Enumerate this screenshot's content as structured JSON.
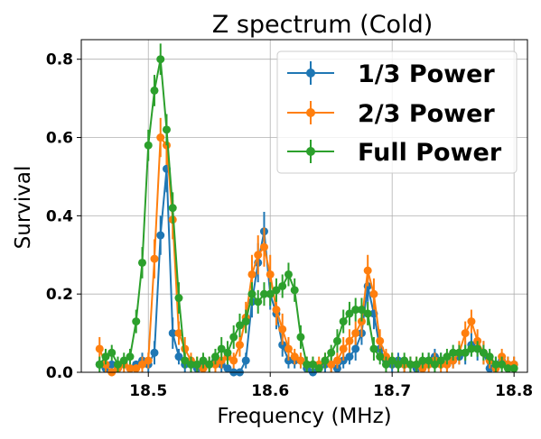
{
  "chart_data": {
    "type": "line",
    "title": "Z spectrum (Cold)",
    "xlabel": "Frequency (MHz)",
    "ylabel": "Survival",
    "xlim": [
      18.445,
      18.811
    ],
    "ylim": [
      0.0,
      0.85
    ],
    "xticks": [
      18.5,
      18.6,
      18.7,
      18.8
    ],
    "xtick_labels": [
      "18.5",
      "18.6",
      "18.7",
      "18.8"
    ],
    "yticks": [
      0.0,
      0.2,
      0.4,
      0.6,
      0.8
    ],
    "ytick_labels": [
      "0.0",
      "0.2",
      "0.4",
      "0.6",
      "0.8"
    ],
    "grid": true,
    "legend_position": "upper right",
    "error_bars": true,
    "series": [
      {
        "name": "1/3 Power",
        "color": "#1f77b4",
        "x": [
          18.46,
          18.465,
          18.47,
          18.475,
          18.48,
          18.485,
          18.49,
          18.495,
          18.5,
          18.505,
          18.51,
          18.515,
          18.52,
          18.525,
          18.53,
          18.535,
          18.54,
          18.545,
          18.55,
          18.555,
          18.56,
          18.565,
          18.57,
          18.575,
          18.58,
          18.585,
          18.59,
          18.595,
          18.6,
          18.605,
          18.61,
          18.615,
          18.62,
          18.625,
          18.63,
          18.635,
          18.64,
          18.645,
          18.65,
          18.655,
          18.66,
          18.665,
          18.67,
          18.675,
          18.68,
          18.685,
          18.69,
          18.695,
          18.7,
          18.705,
          18.71,
          18.715,
          18.72,
          18.725,
          18.73,
          18.735,
          18.74,
          18.745,
          18.75,
          18.755,
          18.76,
          18.765,
          18.77,
          18.775,
          18.78,
          18.785,
          18.79,
          18.795,
          18.8
        ],
        "y": [
          0.02,
          0.01,
          0.02,
          0.01,
          0.02,
          0.01,
          0.02,
          0.03,
          0.02,
          0.05,
          0.35,
          0.52,
          0.1,
          0.04,
          0.02,
          0.02,
          0.01,
          0.02,
          0.02,
          0.03,
          0.02,
          0.01,
          0.0,
          0.0,
          0.03,
          0.18,
          0.28,
          0.36,
          0.2,
          0.15,
          0.07,
          0.03,
          0.03,
          0.03,
          0.01,
          0.0,
          0.01,
          0.02,
          0.02,
          0.01,
          0.03,
          0.04,
          0.06,
          0.1,
          0.22,
          0.15,
          0.06,
          0.03,
          0.02,
          0.03,
          0.02,
          0.02,
          0.01,
          0.02,
          0.03,
          0.04,
          0.03,
          0.02,
          0.03,
          0.04,
          0.05,
          0.07,
          0.06,
          0.05,
          0.01,
          0.02,
          0.03,
          0.02,
          0.02
        ],
        "err": [
          0.01,
          0.01,
          0.01,
          0.01,
          0.01,
          0.01,
          0.01,
          0.02,
          0.02,
          0.03,
          0.05,
          0.06,
          0.04,
          0.02,
          0.02,
          0.02,
          0.01,
          0.02,
          0.02,
          0.02,
          0.02,
          0.01,
          0.01,
          0.01,
          0.02,
          0.04,
          0.05,
          0.05,
          0.04,
          0.04,
          0.03,
          0.02,
          0.02,
          0.02,
          0.01,
          0.01,
          0.01,
          0.02,
          0.02,
          0.01,
          0.02,
          0.02,
          0.03,
          0.03,
          0.04,
          0.04,
          0.03,
          0.02,
          0.02,
          0.02,
          0.02,
          0.02,
          0.01,
          0.02,
          0.02,
          0.02,
          0.02,
          0.02,
          0.02,
          0.02,
          0.03,
          0.03,
          0.03,
          0.03,
          0.01,
          0.02,
          0.02,
          0.02,
          0.02
        ]
      },
      {
        "name": "2/3 Power",
        "color": "#ff7f0e",
        "x": [
          18.46,
          18.465,
          18.47,
          18.475,
          18.48,
          18.485,
          18.49,
          18.495,
          18.5,
          18.505,
          18.51,
          18.515,
          18.52,
          18.525,
          18.53,
          18.535,
          18.54,
          18.545,
          18.55,
          18.555,
          18.56,
          18.565,
          18.57,
          18.575,
          18.58,
          18.585,
          18.59,
          18.595,
          18.6,
          18.605,
          18.61,
          18.615,
          18.62,
          18.625,
          18.63,
          18.635,
          18.64,
          18.645,
          18.65,
          18.655,
          18.66,
          18.665,
          18.67,
          18.675,
          18.68,
          18.685,
          18.69,
          18.695,
          18.7,
          18.705,
          18.71,
          18.715,
          18.72,
          18.725,
          18.73,
          18.735,
          18.74,
          18.745,
          18.75,
          18.755,
          18.76,
          18.765,
          18.77,
          18.775,
          18.78,
          18.785,
          18.79,
          18.795,
          18.8
        ],
        "y": [
          0.06,
          0.02,
          0.0,
          0.01,
          0.02,
          0.01,
          0.01,
          0.02,
          0.03,
          0.29,
          0.6,
          0.58,
          0.39,
          0.1,
          0.06,
          0.03,
          0.02,
          0.01,
          0.02,
          0.02,
          0.03,
          0.04,
          0.03,
          0.07,
          0.14,
          0.25,
          0.3,
          0.32,
          0.25,
          0.16,
          0.11,
          0.06,
          0.04,
          0.03,
          0.02,
          0.02,
          0.02,
          0.03,
          0.02,
          0.03,
          0.06,
          0.08,
          0.1,
          0.13,
          0.26,
          0.2,
          0.08,
          0.04,
          0.03,
          0.02,
          0.02,
          0.02,
          0.02,
          0.01,
          0.02,
          0.03,
          0.02,
          0.02,
          0.03,
          0.05,
          0.1,
          0.13,
          0.08,
          0.05,
          0.03,
          0.01,
          0.04,
          0.02,
          0.02
        ],
        "err": [
          0.03,
          0.02,
          0.01,
          0.01,
          0.02,
          0.01,
          0.01,
          0.02,
          0.02,
          0.05,
          0.05,
          0.05,
          0.05,
          0.03,
          0.03,
          0.02,
          0.02,
          0.01,
          0.02,
          0.02,
          0.02,
          0.02,
          0.02,
          0.03,
          0.04,
          0.05,
          0.05,
          0.05,
          0.05,
          0.04,
          0.04,
          0.03,
          0.02,
          0.02,
          0.02,
          0.02,
          0.02,
          0.02,
          0.02,
          0.02,
          0.03,
          0.03,
          0.03,
          0.04,
          0.04,
          0.04,
          0.03,
          0.02,
          0.02,
          0.02,
          0.02,
          0.02,
          0.02,
          0.01,
          0.02,
          0.02,
          0.02,
          0.02,
          0.02,
          0.03,
          0.03,
          0.03,
          0.03,
          0.03,
          0.02,
          0.01,
          0.02,
          0.02,
          0.02
        ]
      },
      {
        "name": "Full Power",
        "color": "#2ca02c",
        "x": [
          18.46,
          18.465,
          18.47,
          18.475,
          18.48,
          18.485,
          18.49,
          18.495,
          18.5,
          18.505,
          18.51,
          18.515,
          18.52,
          18.525,
          18.53,
          18.535,
          18.54,
          18.545,
          18.55,
          18.555,
          18.56,
          18.565,
          18.57,
          18.575,
          18.58,
          18.585,
          18.59,
          18.595,
          18.6,
          18.605,
          18.61,
          18.615,
          18.62,
          18.625,
          18.63,
          18.635,
          18.64,
          18.645,
          18.65,
          18.655,
          18.66,
          18.665,
          18.67,
          18.675,
          18.68,
          18.685,
          18.69,
          18.695,
          18.7,
          18.705,
          18.71,
          18.715,
          18.72,
          18.725,
          18.73,
          18.735,
          18.74,
          18.745,
          18.75,
          18.755,
          18.76,
          18.765,
          18.77,
          18.775,
          18.78,
          18.785,
          18.79,
          18.795,
          18.8
        ],
        "y": [
          0.02,
          0.04,
          0.05,
          0.02,
          0.03,
          0.04,
          0.13,
          0.28,
          0.58,
          0.72,
          0.8,
          0.62,
          0.42,
          0.19,
          0.03,
          0.02,
          0.02,
          0.03,
          0.02,
          0.04,
          0.06,
          0.05,
          0.09,
          0.12,
          0.13,
          0.2,
          0.18,
          0.2,
          0.2,
          0.21,
          0.22,
          0.25,
          0.21,
          0.09,
          0.02,
          0.02,
          0.01,
          0.03,
          0.05,
          0.08,
          0.13,
          0.15,
          0.16,
          0.16,
          0.15,
          0.06,
          0.04,
          0.02,
          0.03,
          0.02,
          0.03,
          0.02,
          0.02,
          0.03,
          0.03,
          0.02,
          0.03,
          0.04,
          0.05,
          0.05,
          0.05,
          0.06,
          0.06,
          0.05,
          0.04,
          0.02,
          0.02,
          0.01,
          0.01
        ],
        "err": [
          0.02,
          0.02,
          0.02,
          0.02,
          0.02,
          0.02,
          0.03,
          0.04,
          0.04,
          0.04,
          0.04,
          0.04,
          0.04,
          0.04,
          0.02,
          0.02,
          0.02,
          0.02,
          0.02,
          0.02,
          0.03,
          0.03,
          0.03,
          0.03,
          0.03,
          0.03,
          0.03,
          0.03,
          0.03,
          0.03,
          0.03,
          0.03,
          0.03,
          0.03,
          0.02,
          0.02,
          0.01,
          0.02,
          0.02,
          0.03,
          0.03,
          0.03,
          0.03,
          0.03,
          0.03,
          0.03,
          0.02,
          0.02,
          0.02,
          0.02,
          0.02,
          0.02,
          0.02,
          0.02,
          0.02,
          0.02,
          0.02,
          0.02,
          0.02,
          0.02,
          0.02,
          0.02,
          0.02,
          0.02,
          0.02,
          0.02,
          0.02,
          0.01,
          0.01
        ]
      }
    ]
  }
}
